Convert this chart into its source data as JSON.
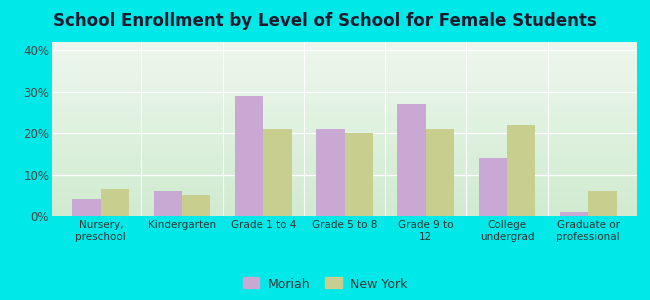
{
  "title": "School Enrollment by Level of School for Female Students",
  "categories": [
    "Nursery,\npreschool",
    "Kindergarten",
    "Grade 1 to 4",
    "Grade 5 to 8",
    "Grade 9 to\n12",
    "College\nundergrad",
    "Graduate or\nprofessional"
  ],
  "moriah": [
    4.0,
    6.0,
    29.0,
    21.0,
    27.0,
    14.0,
    1.0
  ],
  "newyork": [
    6.5,
    5.0,
    21.0,
    20.0,
    21.0,
    22.0,
    6.0
  ],
  "moriah_color": "#c9a8d4",
  "newyork_color": "#c8cf8e",
  "ylim": [
    0,
    42
  ],
  "yticks": [
    0,
    10,
    20,
    30,
    40
  ],
  "ytick_labels": [
    "0%",
    "10%",
    "20%",
    "30%",
    "40%"
  ],
  "background_outer": "#00e8e8",
  "background_inner_top": "#eef7ee",
  "background_inner_bottom": "#d0ebd0",
  "legend_moriah": "Moriah",
  "legend_newyork": "New York",
  "bar_width": 0.35,
  "title_fontsize": 12,
  "title_color": "#1a1a2e"
}
